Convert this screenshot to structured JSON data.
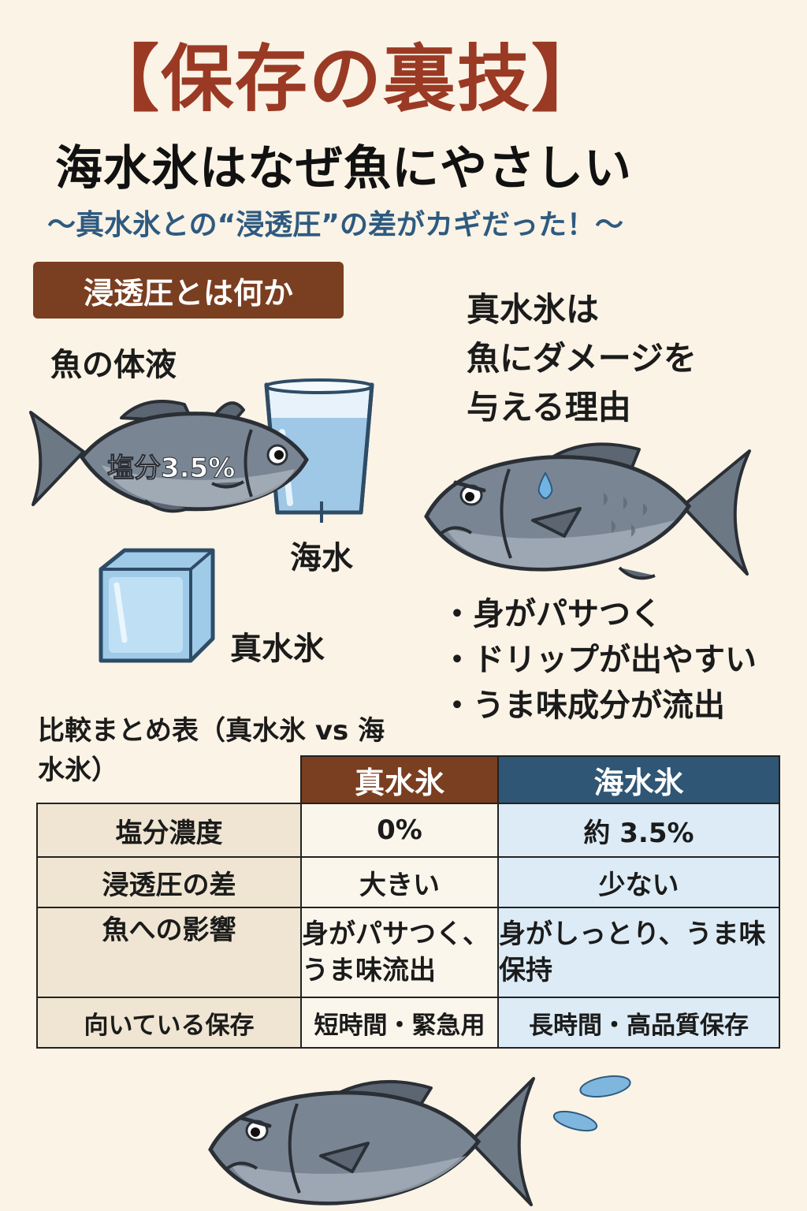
{
  "title": "【保存の裏技】",
  "subtitle": "海水氷はなぜ魚にやさしい",
  "tagline": "〜真水氷との“浸透圧”の差がカギだった！〜",
  "section_badge": "浸透圧とは何か",
  "diagram": {
    "body_fluid_label": "魚の体液",
    "fish_salt_label": "塩分3.5%",
    "seawater_label": "海水",
    "fresh_ice_label": "真水氷"
  },
  "reason": {
    "heading_lines": [
      "真水氷は",
      "魚にダメージを",
      "与える理由"
    ],
    "effects": [
      "・身がパサつく",
      "・ドリップが出やすい",
      "・うま味成分が流出"
    ]
  },
  "table": {
    "caption": "比較まとめ表（真水氷 vs 海水氷）",
    "headers": {
      "fresh": "真水氷",
      "sea": "海水氷"
    },
    "rows": [
      {
        "label": "塩分濃度",
        "fresh": "0%",
        "sea": "約 3.5%"
      },
      {
        "label": "浸透圧の差",
        "fresh": "大きい",
        "sea": "少ない"
      },
      {
        "label": "魚への影響",
        "fresh": "身がパサつく、うま味流出",
        "sea": "身がしっとり、うま味保持"
      },
      {
        "label": "向いている保存",
        "fresh": "短時間・緊急用",
        "sea": "長時間・高品質保存"
      }
    ]
  },
  "colors": {
    "background": "#faf3e6",
    "title": "#9a3a24",
    "tagline": "#2e5a80",
    "brown": "#7a3e20",
    "navy": "#2f5674",
    "fish_body": "#6d7885",
    "ice": "#a9cfe8"
  },
  "icons": [
    "fish-happy-icon",
    "water-glass-icon",
    "ice-cube-icon",
    "fish-sad-icon",
    "sweat-drop-icon",
    "water-droplets-icon"
  ]
}
